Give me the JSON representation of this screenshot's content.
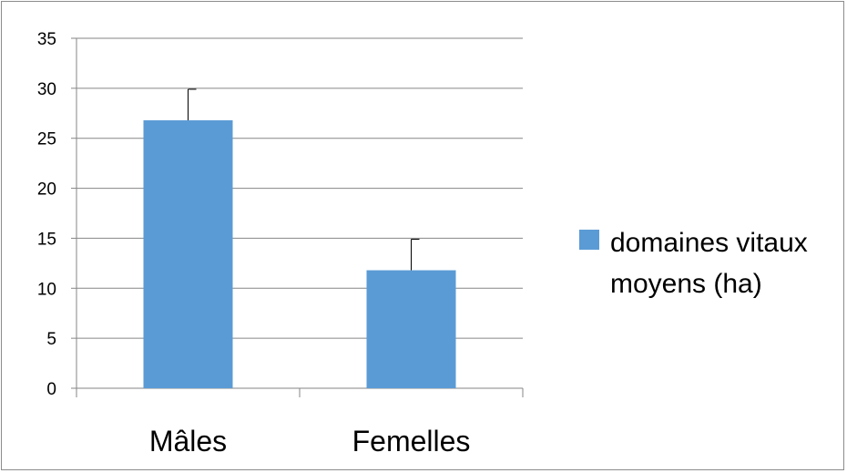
{
  "chart_data": {
    "type": "bar",
    "categories": [
      "Mâles",
      "Femelles"
    ],
    "series": [
      {
        "name": "domaines vitaux moyens (ha)",
        "values": [
          26.8,
          11.8
        ],
        "error_plus": [
          3.1,
          3.1
        ],
        "color": "#5b9bd5"
      }
    ],
    "ylim": [
      0,
      35
    ],
    "yticks": [
      0,
      5,
      10,
      15,
      20,
      25,
      30,
      35
    ],
    "grid": true,
    "legend": "right",
    "legend_lines": [
      "domaines vitaux",
      "moyens (ha)"
    ]
  }
}
